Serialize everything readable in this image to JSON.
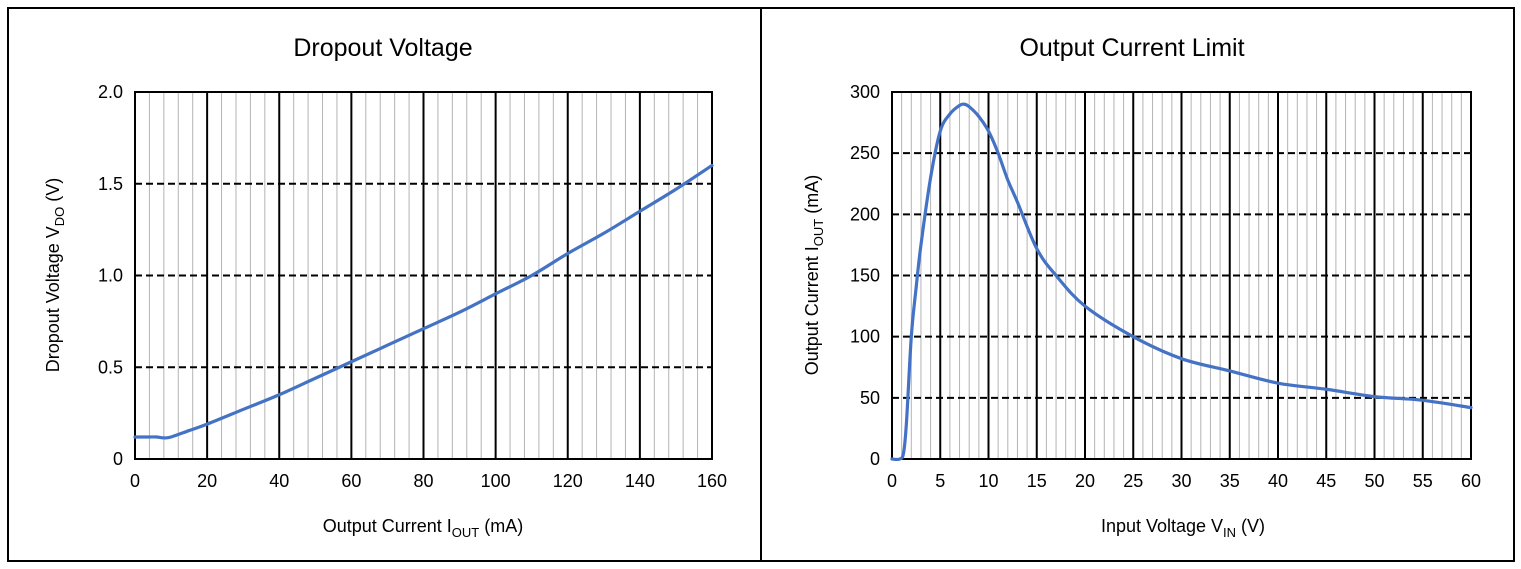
{
  "charts": [
    {
      "id": "dropout",
      "title": "Dropout Voltage",
      "xlabel": {
        "main": "Output Current I",
        "sub": "OUT",
        "tail": " (mA)"
      },
      "ylabel": {
        "main": "Dropout Voltage V",
        "sub": "DO",
        "tail": " (V)"
      },
      "line_color": "#4472c4"
    },
    {
      "id": "current-limit",
      "title": "Output Current Limit",
      "xlabel": {
        "main": "Input Voltage V",
        "sub": "IN",
        "tail": " (V)"
      },
      "ylabel": {
        "main": "Output Current I",
        "sub": "OUT",
        "tail": " (mA)"
      },
      "line_color": "#4472c4"
    }
  ],
  "chart_data": [
    {
      "type": "line",
      "title": "Dropout Voltage",
      "xlabel": "Output Current IOUT (mA)",
      "ylabel": "Dropout Voltage VDO (V)",
      "xlim": [
        0,
        160
      ],
      "ylim": [
        0,
        2.0
      ],
      "x_ticks": [
        0,
        20,
        40,
        60,
        80,
        100,
        120,
        140,
        160
      ],
      "x_tick_labels": [
        "0",
        "20",
        "40",
        "60",
        "80",
        "100",
        "120",
        "140",
        "160"
      ],
      "y_ticks": [
        0,
        0.5,
        1.0,
        1.5,
        2.0
      ],
      "y_tick_labels": [
        "0",
        "0.5",
        "1.0",
        "1.5",
        "2.0"
      ],
      "x_minor_step": 4,
      "grid": true,
      "series": [
        {
          "x": [
            0,
            2,
            4,
            6,
            8,
            10,
            15,
            20,
            30,
            40,
            50,
            60,
            70,
            80,
            90,
            100,
            110,
            120,
            130,
            140,
            150,
            160
          ],
          "y": [
            0.12,
            0.12,
            0.12,
            0.12,
            0.115,
            0.12,
            0.155,
            0.19,
            0.27,
            0.35,
            0.44,
            0.53,
            0.62,
            0.71,
            0.8,
            0.9,
            1.0,
            1.12,
            1.23,
            1.35,
            1.47,
            1.6
          ]
        }
      ]
    },
    {
      "type": "line",
      "title": "Output Current Limit",
      "xlabel": "Input Voltage VIN (V)",
      "ylabel": "Output Current IOUT (mA)",
      "xlim": [
        0,
        60
      ],
      "ylim": [
        0,
        300
      ],
      "x_ticks": [
        0,
        5,
        10,
        15,
        20,
        25,
        30,
        35,
        40,
        45,
        50,
        55,
        60
      ],
      "x_tick_labels": [
        "0",
        "5",
        "10",
        "15",
        "20",
        "25",
        "30",
        "35",
        "40",
        "45",
        "50",
        "55",
        "60"
      ],
      "y_ticks": [
        0,
        50,
        100,
        150,
        200,
        250,
        300
      ],
      "y_tick_labels": [
        "0",
        "50",
        "100",
        "150",
        "200",
        "250",
        "300"
      ],
      "x_minor_step": 1,
      "grid": true,
      "series": [
        {
          "x": [
            0,
            0.8,
            1.2,
            1.5,
            2,
            2.5,
            3,
            4,
            5,
            6,
            7,
            7.5,
            8,
            9,
            10,
            11,
            12,
            13,
            15,
            17,
            20,
            25,
            30,
            35,
            40,
            45,
            50,
            55,
            60
          ],
          "y": [
            0,
            0,
            5,
            30,
            100,
            140,
            175,
            230,
            268,
            282,
            289,
            290,
            288,
            280,
            268,
            250,
            228,
            210,
            172,
            150,
            125,
            100,
            82,
            72,
            62,
            57,
            51,
            48,
            42
          ]
        }
      ]
    }
  ]
}
